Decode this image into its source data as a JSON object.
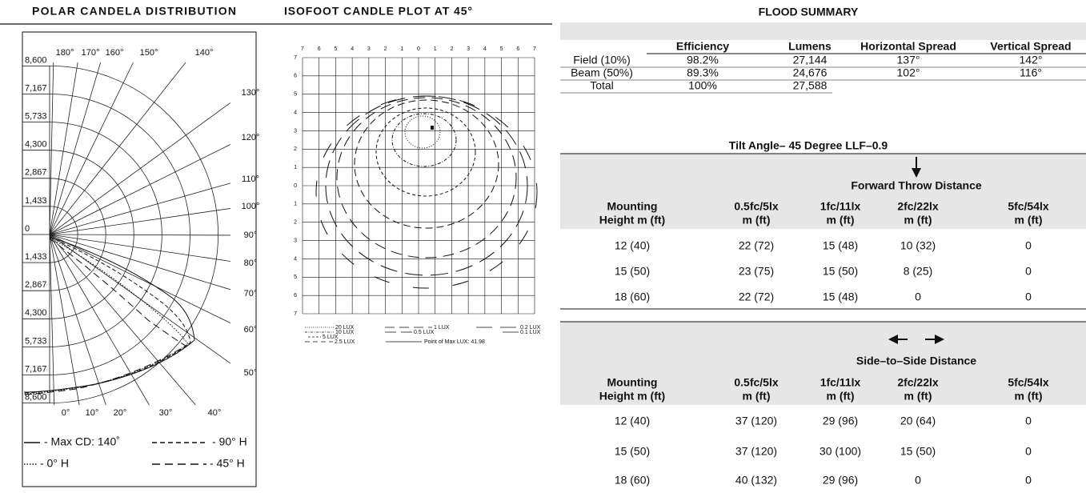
{
  "polar": {
    "title": "POLAR CANDELA DISTRIBUTION",
    "angle_labels": [
      "180°",
      "170°",
      "160°",
      "150°",
      "140°",
      "130°",
      "120°",
      "110°",
      "100°",
      "90°",
      "80°",
      "70°",
      "60°",
      "50°",
      "40°",
      "30°",
      "20°",
      "10°",
      "0°"
    ],
    "radial_labels": [
      "8,600",
      "7,167",
      "5,733",
      "4,300",
      "2,867",
      "1,433",
      "0",
      "1,433",
      "2,867",
      "4,300",
      "5,733",
      "7,167",
      "8,600"
    ],
    "legend": [
      "- Max CD: 140˚",
      "- 90° H",
      "- 0° H",
      "- 45° H"
    ]
  },
  "isofoot": {
    "title": "ISOFOOT CANDLE PLOT AT 45°",
    "x_labels": [
      "7",
      "6",
      "5",
      "4",
      "3",
      "2",
      "1",
      "0",
      "1",
      "2",
      "3",
      "4",
      "5",
      "6",
      "7"
    ],
    "y_labels": [
      "7",
      "6",
      "5",
      "4",
      "3",
      "2",
      "1",
      "0",
      "1",
      "2",
      "3",
      "4",
      "5",
      "6",
      "7"
    ],
    "legend": [
      "20 LUX",
      "10 LUX",
      "5 LUX",
      "2.5 LUX",
      "1 LUX",
      "0.5 LUX",
      "0.2 LUX",
      "0.1 LUX",
      "Point of Max LUX: 41.98"
    ]
  },
  "flood_summary": {
    "title": "FLOOD SUMMARY",
    "columns": [
      "Efficiency",
      "Lumens",
      "Horizontal Spread",
      "Vertical Spread"
    ],
    "rows": [
      [
        "Field (10%)",
        "98.2%",
        "27,144",
        "137°",
        "142°"
      ],
      [
        "Beam (50%)",
        "89.3%",
        "24,676",
        "102°",
        "116°"
      ],
      [
        "Total",
        "100%",
        "27,588"
      ]
    ]
  },
  "forward_throw": {
    "caption": "Tilt Angle– 45 Degree LLF–0.9",
    "title": "Forward Throw Distance",
    "columns": [
      [
        "Mounting",
        "Height m (ft)"
      ],
      [
        "0.5fc/5lx",
        "m (ft)"
      ],
      [
        "1fc/11lx",
        "m (ft)"
      ],
      [
        "2fc/22lx",
        "m (ft)"
      ],
      [
        "5fc/54lx",
        "m (ft)"
      ]
    ],
    "rows": [
      [
        "12 (40)",
        "22 (72)",
        "15 (48)",
        "10 (32)",
        "0"
      ],
      [
        "15 (50)",
        "23 (75)",
        "15 (50)",
        "8 (25)",
        "0"
      ],
      [
        "18 (60)",
        "22 (72)",
        "15 (48)",
        "0",
        "0"
      ]
    ]
  },
  "side_to_side": {
    "title": "Side–to–Side Distance",
    "columns": [
      [
        "Mounting",
        "Height m (ft)"
      ],
      [
        "0.5fc/5lx",
        "m (ft)"
      ],
      [
        "1fc/11lx",
        "m (ft)"
      ],
      [
        "2fc/22lx",
        "m (ft)"
      ],
      [
        "5fc/54lx",
        "m (ft)"
      ]
    ],
    "rows": [
      [
        "12 (40)",
        "37 (120)",
        "29 (96)",
        "20 (64)",
        "0"
      ],
      [
        "15 (50)",
        "37 (120)",
        "30 (100)",
        "15 (50)",
        "0"
      ],
      [
        "18 (60)",
        "40 (132)",
        "29 (96)",
        "0",
        "0"
      ]
    ]
  }
}
